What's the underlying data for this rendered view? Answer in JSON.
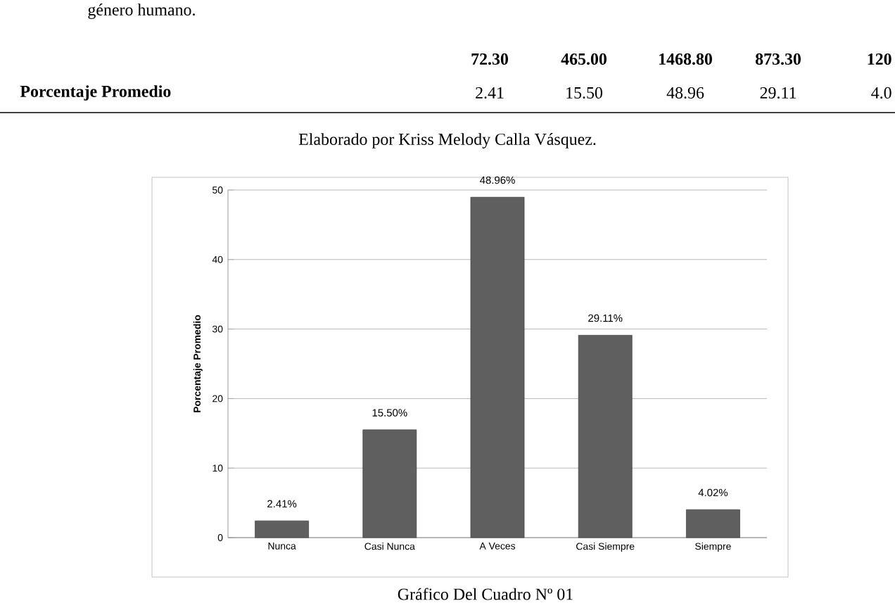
{
  "chart_data": {
    "type": "bar",
    "ylabel": "Porcentaje Promedio",
    "categories": [
      "Nunca",
      "Casi Nunca",
      "A Veces",
      "Casi Siempre",
      "Siempre"
    ],
    "values": [
      2.41,
      15.5,
      48.96,
      29.11,
      4.02
    ],
    "value_labels": [
      "2.41%",
      "15.50%",
      "48.96%",
      "29.11%",
      "4.02%"
    ],
    "color": "#5f5f5f",
    "ylim": [
      0,
      50
    ],
    "yticks": [
      0,
      10,
      20,
      30,
      40,
      50
    ],
    "grid": "y",
    "annotations": [
      "género humano.",
      "72.30",
      "465.00",
      "1468.80",
      "873.30",
      "120",
      "Porcentaje Promedio",
      "2.41",
      "15.50",
      "48.96",
      "29.11",
      "4.0",
      "Elaborado por Kriss Melody Calla Vásquez.",
      "Gráfico Del Cuadro Nº 01"
    ]
  }
}
